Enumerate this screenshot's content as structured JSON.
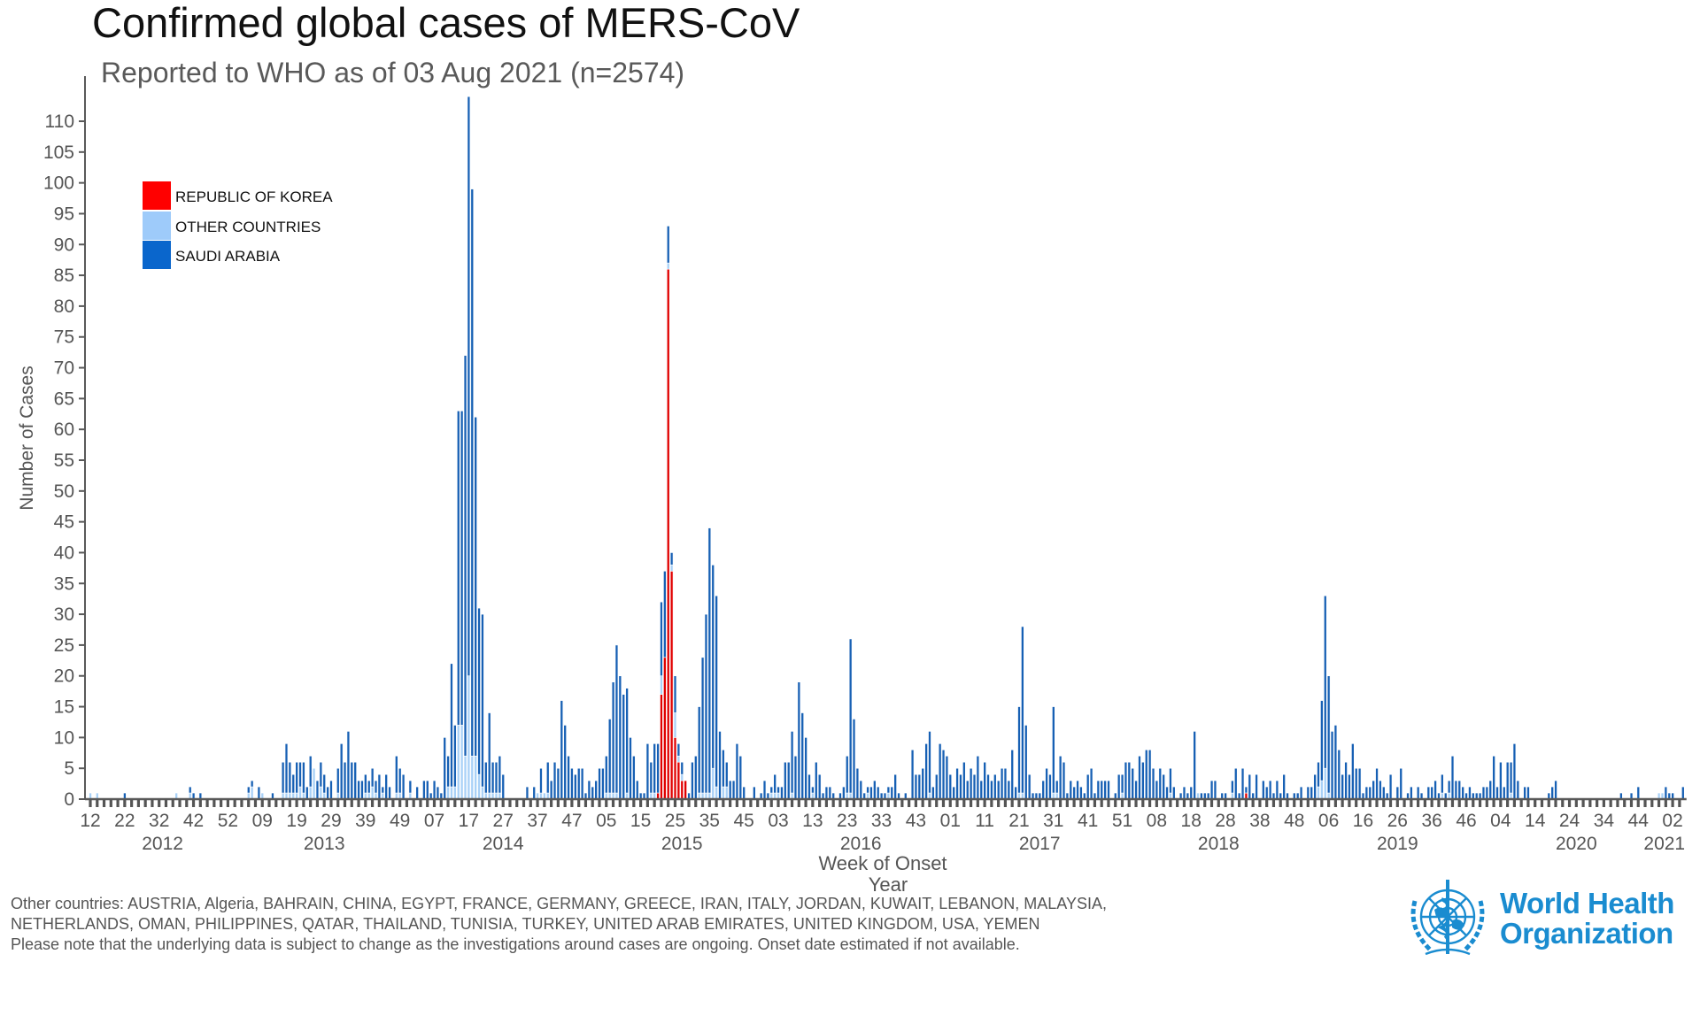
{
  "chart_data": {
    "type": "bar",
    "stacked": true,
    "title": "Confirmed global cases of MERS-CoV",
    "subtitle": "Reported to WHO as of 03 Aug 2021 (n=2574)",
    "ylabel": "Number of Cases",
    "xlabel": "Week of Onset",
    "xlabel_secondary": "Year",
    "ylim": [
      0,
      117
    ],
    "y_ticks": [
      0,
      5,
      10,
      15,
      20,
      25,
      30,
      35,
      40,
      45,
      50,
      55,
      60,
      65,
      70,
      75,
      80,
      85,
      90,
      95,
      100,
      105,
      110
    ],
    "grid": false,
    "legend_position": "top-left",
    "first_week": {
      "year": 2012,
      "week": 12
    },
    "years": [
      2012,
      2013,
      2014,
      2015,
      2016,
      2017,
      2018,
      2019,
      2020,
      2021
    ],
    "x_tick_labels": [
      "12",
      "22",
      "32",
      "42",
      "52",
      "09",
      "19",
      "29",
      "39",
      "49",
      "07",
      "17",
      "27",
      "37",
      "47",
      "05",
      "15",
      "25",
      "35",
      "45",
      "03",
      "13",
      "23",
      "33",
      "43",
      "01",
      "11",
      "21",
      "31",
      "41",
      "51",
      "08",
      "18",
      "28",
      "38",
      "48",
      "06",
      "16",
      "26",
      "36",
      "46",
      "04",
      "14",
      "24",
      "34",
      "44",
      "02"
    ],
    "year_labels": [
      "2012",
      "2013",
      "2014",
      "2015",
      "2016",
      "2017",
      "2018",
      "2019",
      "2020",
      "2021"
    ],
    "series": [
      {
        "name": "REPUBLIC OF KOREA",
        "color": "#e00000",
        "legend_color": "#ff0000",
        "values": {
          "2015": [
            0,
            0,
            0,
            0,
            0,
            0,
            0,
            0,
            0,
            0,
            0,
            0,
            0,
            0,
            0,
            0,
            0,
            0,
            0,
            1,
            17,
            23,
            86,
            37,
            10,
            6,
            3,
            3,
            0,
            0,
            0,
            0,
            0,
            0,
            0,
            0,
            0,
            0,
            0,
            0,
            0,
            0,
            0,
            0,
            0,
            0,
            0,
            0,
            0,
            0,
            0,
            0
          ],
          "2018": [
            0,
            0,
            0,
            0,
            0,
            0,
            0,
            0,
            0,
            0,
            0,
            0,
            0,
            0,
            0,
            0,
            0,
            0,
            0,
            0,
            0,
            0,
            0,
            0,
            0,
            0,
            0,
            0,
            0,
            0,
            0,
            0,
            0,
            0,
            1,
            0,
            0,
            0,
            0,
            0,
            0,
            0,
            0,
            0,
            0,
            0,
            0,
            0,
            0,
            0,
            0,
            0
          ]
        }
      },
      {
        "name": "OTHER COUNTRIES",
        "color": "#a9d1f7",
        "legend_color": "#9ecbfa",
        "values": {
          "2012": [
            1,
            0,
            1,
            0,
            0,
            0,
            0,
            0,
            0,
            0,
            0,
            0,
            0,
            0,
            0,
            0,
            0,
            0,
            0,
            0,
            0,
            0,
            0,
            0,
            0,
            1,
            0,
            0,
            0,
            1,
            0,
            0,
            0,
            0,
            0,
            0,
            0,
            0,
            0,
            0,
            0,
            0
          ],
          "2013": [
            0,
            0,
            0,
            0,
            1,
            2,
            0,
            0,
            1,
            0,
            0,
            0,
            0,
            0,
            1,
            1,
            1,
            1,
            1,
            2,
            1,
            0,
            2,
            5,
            0,
            2,
            1,
            0,
            0,
            0,
            1,
            0,
            0,
            0,
            0,
            0,
            0,
            0,
            1,
            1,
            2,
            1,
            0,
            1,
            0,
            0,
            0,
            1,
            1,
            0,
            0,
            1
          ],
          "2014": [
            0,
            0,
            0,
            0,
            0,
            0,
            0,
            0,
            0,
            0,
            2,
            2,
            2,
            12,
            12,
            7,
            20,
            7,
            7,
            4,
            2,
            1,
            1,
            1,
            1,
            1,
            0,
            0,
            0,
            0,
            0,
            0,
            0,
            0,
            0,
            0,
            1,
            1,
            1,
            1,
            0,
            0,
            0,
            0,
            0,
            0,
            0,
            0,
            0,
            0,
            0,
            0
          ],
          "2015": [
            0,
            0,
            0,
            0,
            1,
            1,
            1,
            1,
            0,
            0,
            1,
            0,
            0,
            0,
            0,
            0,
            0,
            1,
            1,
            0,
            3,
            0,
            1,
            1,
            4,
            1,
            1,
            0,
            0,
            0,
            0,
            1,
            1,
            1,
            1,
            5,
            2,
            0,
            2,
            2,
            0,
            0,
            0,
            0,
            0,
            0,
            0,
            0,
            0,
            0,
            0,
            0
          ],
          "2016": [
            1,
            1,
            1,
            0,
            0,
            0,
            1,
            0,
            0,
            0,
            0,
            0,
            1,
            0,
            0,
            0,
            0,
            0,
            0,
            0,
            0,
            0,
            1,
            1,
            0,
            0,
            0,
            0,
            1,
            0,
            0,
            0,
            0,
            0,
            1,
            0,
            0,
            0,
            0,
            0,
            0,
            0,
            0,
            0,
            0,
            0,
            1,
            0,
            0,
            0,
            0,
            0
          ],
          "2017": [
            0,
            0,
            0,
            0,
            0,
            0,
            0,
            0,
            0,
            0,
            0,
            0,
            0,
            0,
            0,
            0,
            0,
            0,
            0,
            0,
            1,
            1,
            0,
            0,
            0,
            0,
            0,
            0,
            0,
            0,
            1,
            1,
            0,
            0,
            0,
            0,
            0,
            0,
            0,
            0,
            0,
            0,
            0,
            0,
            0,
            0,
            0,
            0,
            0,
            0,
            1,
            0
          ],
          "2018": [
            0,
            0,
            0,
            0,
            0,
            0,
            0,
            0,
            0,
            0,
            0,
            0,
            1,
            0,
            0,
            0,
            0,
            0,
            0,
            0,
            1,
            0,
            0,
            0,
            0,
            0,
            0,
            0,
            0,
            0,
            1,
            0,
            0,
            0,
            0,
            0,
            0,
            0,
            0,
            0,
            0,
            0,
            0,
            0,
            0,
            0,
            0,
            0,
            0,
            0,
            0,
            0
          ],
          "2019": [
            0,
            0,
            0,
            2,
            3,
            5,
            1,
            0,
            0,
            0,
            0,
            0,
            0,
            0,
            0,
            0,
            0,
            0,
            0,
            0,
            0,
            0,
            0,
            0,
            0,
            0,
            0,
            0,
            0,
            0,
            0,
            0,
            0,
            0,
            0,
            0,
            0,
            0,
            0,
            1,
            0,
            1,
            0,
            0,
            0,
            0,
            0,
            0,
            0,
            0,
            0,
            0
          ],
          "2020": [
            0,
            0,
            0,
            0,
            0,
            0,
            0,
            1,
            0,
            0,
            0,
            0,
            0,
            0,
            0,
            0,
            0,
            0,
            0,
            0,
            0,
            0,
            0,
            0,
            0,
            0,
            0,
            0,
            0,
            0,
            0,
            0,
            0,
            0,
            0,
            0,
            0,
            0,
            0,
            0,
            0,
            0,
            0,
            0,
            0,
            0,
            0,
            0,
            0,
            0,
            1,
            1
          ]
        }
      },
      {
        "name": "SAUDI ARABIA",
        "color": "#1760b4",
        "legend_color": "#0a66cc",
        "values": {
          "2012": [
            0,
            0,
            0,
            0,
            0,
            0,
            0,
            0,
            0,
            0,
            1,
            0,
            0,
            0,
            0,
            0,
            0,
            0,
            0,
            0,
            0,
            0,
            0,
            0,
            0,
            0,
            0,
            0,
            0,
            1,
            1,
            0,
            1,
            0,
            0,
            0,
            0,
            0,
            0,
            0,
            0,
            0
          ],
          "2013": [
            0,
            0,
            0,
            0,
            1,
            1,
            0,
            2,
            0,
            0,
            0,
            1,
            0,
            0,
            5,
            8,
            5,
            3,
            5,
            4,
            5,
            2,
            5,
            0,
            3,
            4,
            3,
            2,
            3,
            0,
            4,
            9,
            6,
            11,
            6,
            6,
            3,
            3,
            3,
            2,
            3,
            2,
            4,
            1,
            4,
            2,
            0,
            6,
            4,
            4,
            0,
            2
          ],
          "2014": [
            0,
            2,
            0,
            3,
            3,
            1,
            3,
            2,
            1,
            10,
            5,
            20,
            10,
            51,
            51,
            65,
            94,
            92,
            55,
            27,
            28,
            5,
            13,
            5,
            5,
            6,
            4,
            0,
            0,
            0,
            0,
            0,
            0,
            2,
            0,
            2,
            0,
            4,
            0,
            5,
            3,
            6,
            5,
            16,
            12,
            7,
            5,
            4,
            5,
            5,
            1,
            3
          ],
          "2015": [
            2,
            3,
            5,
            5,
            6,
            12,
            18,
            24,
            20,
            17,
            17,
            10,
            7,
            3,
            1,
            1,
            9,
            5,
            8,
            8,
            12,
            14,
            6,
            2,
            6,
            2,
            2,
            0,
            1,
            6,
            7,
            14,
            22,
            29,
            43,
            33,
            31,
            11,
            6,
            4,
            3,
            3,
            9,
            7,
            2,
            0,
            0,
            2,
            0,
            1,
            3,
            1
          ],
          "2016": [
            1,
            3,
            1,
            2,
            6,
            6,
            10,
            7,
            19,
            14,
            10,
            4,
            1,
            6,
            4,
            1,
            2,
            2,
            1,
            0,
            1,
            2,
            6,
            25,
            13,
            5,
            3,
            1,
            1,
            2,
            3,
            2,
            1,
            1,
            1,
            2,
            4,
            1,
            0,
            1,
            0,
            8,
            4,
            4,
            5,
            9,
            10,
            2,
            4,
            9,
            8,
            7
          ],
          "2017": [
            4,
            2,
            5,
            4,
            6,
            3,
            5,
            4,
            7,
            3,
            6,
            4,
            3,
            4,
            3,
            5,
            5,
            3,
            8,
            2,
            14,
            27,
            12,
            4,
            1,
            1,
            1,
            3,
            5,
            4,
            14,
            2,
            7,
            6,
            1,
            3,
            2,
            3,
            2,
            1,
            4,
            5,
            1,
            3,
            3,
            3,
            3,
            0,
            1,
            4,
            3,
            6
          ],
          "2018": [
            6,
            5,
            3,
            7,
            6,
            8,
            8,
            5,
            3,
            5,
            4,
            2,
            4,
            2,
            0,
            1,
            2,
            1,
            2,
            11,
            0,
            1,
            1,
            1,
            3,
            3,
            0,
            1,
            1,
            0,
            2,
            5,
            1,
            5,
            1,
            4,
            1,
            4,
            0,
            3,
            2,
            3,
            1,
            3,
            1,
            4,
            1,
            0,
            1,
            1,
            2,
            0
          ],
          "2019": [
            2,
            2,
            4,
            4,
            13,
            28,
            19,
            11,
            12,
            8,
            4,
            6,
            4,
            9,
            5,
            5,
            1,
            2,
            2,
            3,
            5,
            3,
            2,
            1,
            4,
            0,
            2,
            5,
            0,
            1,
            2,
            0,
            2,
            1,
            0,
            2,
            2,
            3,
            1,
            3,
            1,
            2,
            7,
            3,
            3,
            2,
            1,
            2,
            1,
            1,
            1,
            2
          ],
          "2020": [
            2,
            3,
            7,
            2,
            6,
            2,
            6,
            5,
            9,
            3,
            0,
            2,
            2,
            0,
            0,
            0,
            0,
            0,
            1,
            2,
            3,
            0,
            0,
            0,
            0,
            0,
            0,
            0,
            0,
            0,
            0,
            0,
            0,
            0,
            0,
            0,
            0,
            0,
            0,
            1,
            0,
            0,
            1,
            0,
            2,
            0,
            0,
            0,
            0,
            0,
            0,
            0
          ],
          "2021": [
            2,
            1,
            1,
            0,
            0,
            2
          ]
        }
      }
    ]
  },
  "legend": {
    "items": [
      "REPUBLIC OF KOREA",
      "OTHER COUNTRIES",
      "SAUDI ARABIA"
    ]
  },
  "footnotes": {
    "line1": "Other countries: AUSTRIA, Algeria, BAHRAIN, CHINA, EGYPT, FRANCE, GERMANY, GREECE, IRAN, ITALY, JORDAN, KUWAIT, LEBANON, MALAYSIA,",
    "line2": "NETHERLANDS, OMAN, PHILIPPINES, QATAR, THAILAND, TUNISIA, TURKEY, UNITED ARAB EMIRATES, UNITED KINGDOM, USA, YEMEN",
    "line3": "Please note that the underlying data is subject to change as the investigations around cases are ongoing. Onset date estimated if not available."
  },
  "logo": {
    "line1": "World Health",
    "line2": "Organization",
    "color": "#1a8cd0"
  }
}
